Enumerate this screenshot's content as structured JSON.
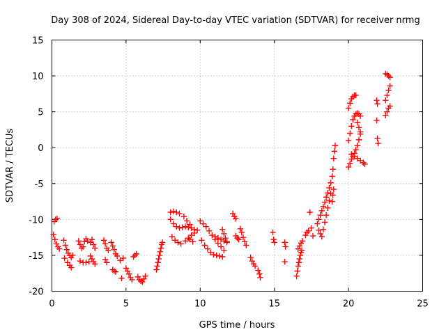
{
  "chart_data": {
    "type": "scatter",
    "title": "Day 308 of 2024, Sidereal Day-to-day VTEC variation (SDTVAR) for receiver nrmg",
    "xlabel": "GPS time / hours",
    "ylabel": "SDTVAR / TECUs",
    "xlim": [
      0,
      25
    ],
    "ylim": [
      -20,
      15
    ],
    "xticks": [
      0,
      5,
      10,
      15,
      20,
      25
    ],
    "yticks": [
      -20,
      -15,
      -10,
      -5,
      0,
      5,
      10,
      15
    ],
    "grid": true,
    "marker": "+",
    "color": "#ff0000",
    "series": [
      {
        "name": "SDTVAR",
        "points": [
          [
            0.15,
            -10.3
          ],
          [
            0.25,
            -10.0
          ],
          [
            0.35,
            -9.9
          ],
          [
            0.1,
            -12.1
          ],
          [
            0.2,
            -12.8
          ],
          [
            0.3,
            -13.4
          ],
          [
            0.4,
            -13.8
          ],
          [
            0.5,
            -14.1
          ],
          [
            0.8,
            -12.9
          ],
          [
            0.9,
            -13.6
          ],
          [
            1.0,
            -14.2
          ],
          [
            1.1,
            -14.7
          ],
          [
            1.2,
            -15.0
          ],
          [
            1.3,
            -15.3
          ],
          [
            1.4,
            -15.0
          ],
          [
            0.85,
            -15.4
          ],
          [
            1.05,
            -16.0
          ],
          [
            1.2,
            -16.4
          ],
          [
            1.3,
            -16.7
          ],
          [
            1.8,
            -13.0
          ],
          [
            1.9,
            -13.5
          ],
          [
            2.0,
            -14.0
          ],
          [
            2.1,
            -13.8
          ],
          [
            2.2,
            -13.1
          ],
          [
            2.3,
            -12.7
          ],
          [
            2.4,
            -13.0
          ],
          [
            1.9,
            -15.8
          ],
          [
            2.1,
            -16.0
          ],
          [
            2.3,
            -16.0
          ],
          [
            2.5,
            -15.9
          ],
          [
            2.6,
            -13.2
          ],
          [
            2.7,
            -12.8
          ],
          [
            2.8,
            -13.5
          ],
          [
            2.9,
            -14.0
          ],
          [
            2.6,
            -15.1
          ],
          [
            2.7,
            -15.5
          ],
          [
            2.8,
            -15.9
          ],
          [
            2.9,
            -16.2
          ],
          [
            3.5,
            -12.9
          ],
          [
            3.6,
            -13.4
          ],
          [
            3.7,
            -14.0
          ],
          [
            3.8,
            -14.3
          ],
          [
            3.6,
            -15.6
          ],
          [
            3.7,
            -16.0
          ],
          [
            4.0,
            -13.2
          ],
          [
            4.1,
            -13.7
          ],
          [
            4.2,
            -14.2
          ],
          [
            4.3,
            -14.8
          ],
          [
            4.4,
            -15.1
          ],
          [
            4.1,
            -17.0
          ],
          [
            4.2,
            -17.2
          ],
          [
            4.3,
            -17.3
          ],
          [
            4.6,
            -15.7
          ],
          [
            4.8,
            -15.4
          ],
          [
            4.7,
            -18.2
          ],
          [
            5.0,
            -16.8
          ],
          [
            5.1,
            -17.2
          ],
          [
            5.2,
            -17.6
          ],
          [
            5.3,
            -18.1
          ],
          [
            5.4,
            -18.4
          ],
          [
            5.5,
            -15.2
          ],
          [
            5.6,
            -15.0
          ],
          [
            5.7,
            -14.8
          ],
          [
            5.8,
            -18.0
          ],
          [
            5.9,
            -18.4
          ],
          [
            6.0,
            -18.6
          ],
          [
            6.1,
            -18.7
          ],
          [
            6.2,
            -18.3
          ],
          [
            6.3,
            -17.9
          ],
          [
            7.05,
            -17.0
          ],
          [
            7.1,
            -16.5
          ],
          [
            7.15,
            -16.0
          ],
          [
            7.2,
            -15.5
          ],
          [
            7.25,
            -15.0
          ],
          [
            7.3,
            -14.5
          ],
          [
            7.35,
            -14.0
          ],
          [
            7.4,
            -13.5
          ],
          [
            7.45,
            -13.2
          ],
          [
            8.0,
            -9.0
          ],
          [
            8.2,
            -8.9
          ],
          [
            8.4,
            -9.0
          ],
          [
            8.6,
            -9.2
          ],
          [
            8.0,
            -10.0
          ],
          [
            8.2,
            -10.6
          ],
          [
            8.4,
            -11.0
          ],
          [
            8.6,
            -11.2
          ],
          [
            8.8,
            -11.1
          ],
          [
            9.0,
            -11.0
          ],
          [
            9.2,
            -11.1
          ],
          [
            9.4,
            -11.2
          ],
          [
            9.6,
            -11.4
          ],
          [
            8.1,
            -12.4
          ],
          [
            8.3,
            -12.9
          ],
          [
            8.5,
            -13.2
          ],
          [
            8.7,
            -13.4
          ],
          [
            8.9,
            -9.6
          ],
          [
            9.1,
            -10.2
          ],
          [
            9.3,
            -10.7
          ],
          [
            9.0,
            -13.0
          ],
          [
            9.2,
            -12.6
          ],
          [
            9.4,
            -12.2
          ],
          [
            9.6,
            -11.9
          ],
          [
            9.8,
            -11.5
          ],
          [
            9.3,
            -12.8
          ],
          [
            9.5,
            -13.1
          ],
          [
            10.0,
            -10.2
          ],
          [
            10.2,
            -10.6
          ],
          [
            10.4,
            -11.0
          ],
          [
            10.6,
            -11.6
          ],
          [
            10.8,
            -12.2
          ],
          [
            11.0,
            -12.8
          ],
          [
            11.2,
            -13.3
          ],
          [
            11.4,
            -13.8
          ],
          [
            11.6,
            -14.3
          ],
          [
            10.1,
            -12.9
          ],
          [
            10.3,
            -13.6
          ],
          [
            10.5,
            -14.1
          ],
          [
            10.7,
            -14.6
          ],
          [
            10.9,
            -14.9
          ],
          [
            11.1,
            -15.0
          ],
          [
            11.3,
            -15.1
          ],
          [
            11.5,
            -15.2
          ],
          [
            11.0,
            -12.4
          ],
          [
            11.2,
            -12.6
          ],
          [
            11.4,
            -12.8
          ],
          [
            11.6,
            -13.0
          ],
          [
            11.8,
            -13.2
          ],
          [
            11.5,
            -11.4
          ],
          [
            11.6,
            -12.0
          ],
          [
            11.7,
            -12.6
          ],
          [
            11.8,
            -13.1
          ],
          [
            12.2,
            -9.2
          ],
          [
            12.3,
            -9.6
          ],
          [
            12.4,
            -9.9
          ],
          [
            12.4,
            -12.3
          ],
          [
            12.5,
            -12.6
          ],
          [
            12.6,
            -12.8
          ],
          [
            12.7,
            -11.3
          ],
          [
            12.8,
            -11.8
          ],
          [
            12.9,
            -12.5
          ],
          [
            13.0,
            -13.1
          ],
          [
            13.1,
            -13.6
          ],
          [
            13.4,
            -15.3
          ],
          [
            13.5,
            -15.8
          ],
          [
            13.6,
            -16.2
          ],
          [
            13.7,
            -16.5
          ],
          [
            13.9,
            -17.1
          ],
          [
            14.0,
            -17.6
          ],
          [
            14.05,
            -18.1
          ],
          [
            14.9,
            -11.8
          ],
          [
            14.95,
            -12.8
          ],
          [
            15.0,
            -13.2
          ],
          [
            15.7,
            -13.2
          ],
          [
            15.75,
            -13.8
          ],
          [
            15.7,
            -15.9
          ],
          [
            16.5,
            -17.9
          ],
          [
            16.55,
            -17.2
          ],
          [
            16.6,
            -16.5
          ],
          [
            16.65,
            -16.0
          ],
          [
            16.7,
            -15.5
          ],
          [
            16.75,
            -15.0
          ],
          [
            16.8,
            -14.6
          ],
          [
            16.85,
            -14.3
          ],
          [
            16.6,
            -14.1
          ],
          [
            16.7,
            -13.7
          ],
          [
            16.8,
            -13.3
          ],
          [
            16.9,
            -13.0
          ],
          [
            17.1,
            -12.2
          ],
          [
            17.2,
            -11.8
          ],
          [
            17.3,
            -11.6
          ],
          [
            17.5,
            -11.2
          ],
          [
            17.6,
            -12.3
          ],
          [
            17.4,
            -9.0
          ],
          [
            17.9,
            -10.6
          ],
          [
            18.0,
            -10.0
          ],
          [
            18.1,
            -9.4
          ],
          [
            18.2,
            -8.8
          ],
          [
            18.3,
            -8.2
          ],
          [
            18.4,
            -7.6
          ],
          [
            18.5,
            -6.9
          ],
          [
            18.6,
            -6.3
          ],
          [
            18.7,
            -5.6
          ],
          [
            18.8,
            -4.9
          ],
          [
            18.0,
            -11.5
          ],
          [
            18.1,
            -12.0
          ],
          [
            18.2,
            -12.4
          ],
          [
            18.3,
            -11.4
          ],
          [
            18.4,
            -10.4
          ],
          [
            18.5,
            -9.4
          ],
          [
            18.6,
            -8.4
          ],
          [
            18.7,
            -7.4
          ],
          [
            18.8,
            -6.4
          ],
          [
            18.9,
            -4.0
          ],
          [
            18.95,
            -3.0
          ],
          [
            19.0,
            -1.5
          ],
          [
            19.05,
            -0.5
          ],
          [
            19.1,
            0.3
          ],
          [
            18.9,
            -7.5
          ],
          [
            18.95,
            -6.6
          ],
          [
            19.0,
            -5.8
          ],
          [
            20.0,
            5.5
          ],
          [
            20.1,
            6.2
          ],
          [
            20.2,
            6.8
          ],
          [
            20.3,
            7.1
          ],
          [
            20.4,
            7.3
          ],
          [
            20.5,
            7.3
          ],
          [
            20.0,
            -2.7
          ],
          [
            20.1,
            -2.2
          ],
          [
            20.2,
            -1.6
          ],
          [
            20.3,
            -1.2
          ],
          [
            20.4,
            -0.8
          ],
          [
            20.5,
            -0.3
          ],
          [
            20.6,
            0.3
          ],
          [
            20.7,
            1.1
          ],
          [
            20.8,
            1.9
          ],
          [
            20.0,
            1.0
          ],
          [
            20.1,
            2.0
          ],
          [
            20.2,
            3.0
          ],
          [
            20.3,
            3.9
          ],
          [
            20.4,
            4.4
          ],
          [
            20.5,
            4.7
          ],
          [
            20.6,
            4.8
          ],
          [
            20.7,
            4.7
          ],
          [
            20.8,
            4.4
          ],
          [
            20.2,
            -0.9
          ],
          [
            20.4,
            -1.2
          ],
          [
            20.6,
            -1.5
          ],
          [
            20.8,
            -1.8
          ],
          [
            21.0,
            -2.1
          ],
          [
            21.1,
            -2.3
          ],
          [
            20.6,
            3.5
          ],
          [
            20.7,
            2.8
          ],
          [
            20.8,
            2.2
          ],
          [
            21.9,
            6.6
          ],
          [
            21.95,
            6.1
          ],
          [
            21.9,
            3.8
          ],
          [
            21.95,
            1.3
          ],
          [
            22.0,
            0.6
          ],
          [
            22.5,
            4.5
          ],
          [
            22.6,
            5.0
          ],
          [
            22.7,
            5.5
          ],
          [
            22.8,
            5.8
          ],
          [
            22.5,
            6.6
          ],
          [
            22.6,
            7.3
          ],
          [
            22.7,
            8.0
          ],
          [
            22.8,
            8.6
          ],
          [
            22.5,
            10.3
          ],
          [
            22.6,
            10.2
          ],
          [
            22.7,
            10.0
          ],
          [
            22.8,
            9.8
          ]
        ]
      }
    ]
  }
}
